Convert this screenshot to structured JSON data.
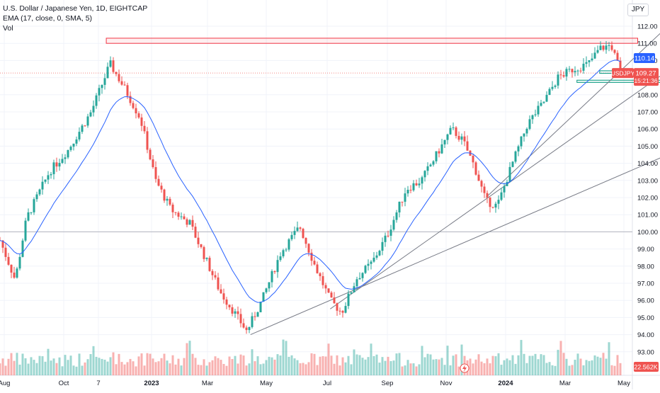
{
  "legend": {
    "title": "U.S. Dollar / Japanese Yen, 1D, EIGHTCAP",
    "ema": "EMA (17, close, 0, SMA, 5)",
    "vol": "Vol"
  },
  "currency": "JPY",
  "price_labels": {
    "ema_value": "110.14",
    "symbol": "USDJPY",
    "last_price": "109.27",
    "countdown": "15:21:36",
    "volume": "22.562K"
  },
  "colors": {
    "up": "#26a69a",
    "down": "#ef5350",
    "ema": "#2962ff",
    "trendline": "#787b86",
    "zone_red": "#f23645",
    "zone_green": "#089981",
    "level": "#b2b5be"
  },
  "chart_data": {
    "type": "candlestick",
    "title": "U.S. Dollar / Japanese Yen, 1D, EIGHTCAP",
    "y_ticks": [
      "112.00",
      "111.00",
      "110.00",
      "109.00",
      "108.00",
      "107.00",
      "106.00",
      "105.00",
      "104.00",
      "103.00",
      "102.00",
      "101.00",
      "100.00",
      "99.00",
      "98.00",
      "97.00",
      "96.00",
      "95.00",
      "94.00",
      "93.00"
    ],
    "x_ticks": [
      "Aug",
      "Oct",
      "7",
      "2023",
      "Mar",
      "May",
      "Jul",
      "Sep",
      "Nov",
      "2024",
      "Mar",
      "May"
    ],
    "ylim": [
      92.2,
      112.6
    ],
    "approx_price_path": [
      {
        "t": 0,
        "p": 99.5
      },
      {
        "t": 0.04,
        "p": 97.2
      },
      {
        "t": 0.07,
        "p": 100.8
      },
      {
        "t": 0.13,
        "p": 103.5
      },
      {
        "t": 0.18,
        "p": 104.8
      },
      {
        "t": 0.24,
        "p": 107.0
      },
      {
        "t": 0.29,
        "p": 109.8
      },
      {
        "t": 0.33,
        "p": 108.3
      },
      {
        "t": 0.37,
        "p": 106.6
      },
      {
        "t": 0.41,
        "p": 103.0
      },
      {
        "t": 0.45,
        "p": 101.3
      },
      {
        "t": 0.5,
        "p": 100.5
      },
      {
        "t": 0.55,
        "p": 98.0
      },
      {
        "t": 0.58,
        "p": 96.5
      },
      {
        "t": 0.62,
        "p": 95.2
      },
      {
        "t": 0.65,
        "p": 94.2
      },
      {
        "t": 0.69,
        "p": 96.0
      },
      {
        "t": 0.74,
        "p": 98.8
      },
      {
        "t": 0.79,
        "p": 100.3
      },
      {
        "t": 0.83,
        "p": 98.0
      },
      {
        "t": 0.87,
        "p": 96.0
      },
      {
        "t": 0.9,
        "p": 95.3
      },
      {
        "t": 0.94,
        "p": 97.3
      },
      {
        "t": 0.98,
        "p": 98.2
      },
      {
        "t": 1.02,
        "p": 99.8
      },
      {
        "t": 1.07,
        "p": 102.5
      },
      {
        "t": 1.11,
        "p": 103.0
      },
      {
        "t": 1.15,
        "p": 104.5
      },
      {
        "t": 1.19,
        "p": 106.0
      },
      {
        "t": 1.22,
        "p": 105.3
      },
      {
        "t": 1.25,
        "p": 103.8
      },
      {
        "t": 1.28,
        "p": 101.8
      },
      {
        "t": 1.31,
        "p": 101.5
      },
      {
        "t": 1.35,
        "p": 104.0
      },
      {
        "t": 1.39,
        "p": 106.3
      },
      {
        "t": 1.43,
        "p": 107.5
      },
      {
        "t": 1.47,
        "p": 109.0
      },
      {
        "t": 1.51,
        "p": 109.5
      },
      {
        "t": 1.55,
        "p": 109.8
      },
      {
        "t": 1.58,
        "p": 110.7
      },
      {
        "t": 1.61,
        "p": 110.9
      },
      {
        "t": 1.635,
        "p": 109.27
      }
    ],
    "ema_period": 17,
    "horizontal_levels": [
      100.0,
      109.27
    ],
    "zones": [
      {
        "color": "red",
        "from_t": 0.28,
        "to_t": 1.68,
        "low": 111.0,
        "high": 111.3
      },
      {
        "color": "green",
        "from_t": 1.52,
        "to_t": 1.74,
        "low": 108.72,
        "high": 108.85
      },
      {
        "color": "green",
        "from_t": 1.58,
        "to_t": 1.68,
        "low": 109.25,
        "high": 109.4
      }
    ],
    "trendlines": [
      {
        "from": [
          0.66,
          94.0
        ],
        "to": [
          2.0,
          106.8
        ]
      },
      {
        "from": [
          0.87,
          95.5
        ],
        "to": [
          1.9,
          111.6
        ]
      },
      {
        "from": [
          1.28,
          102.0
        ],
        "to": [
          1.75,
          111.8
        ]
      }
    ],
    "grid": true,
    "legend_position": "top-left"
  }
}
